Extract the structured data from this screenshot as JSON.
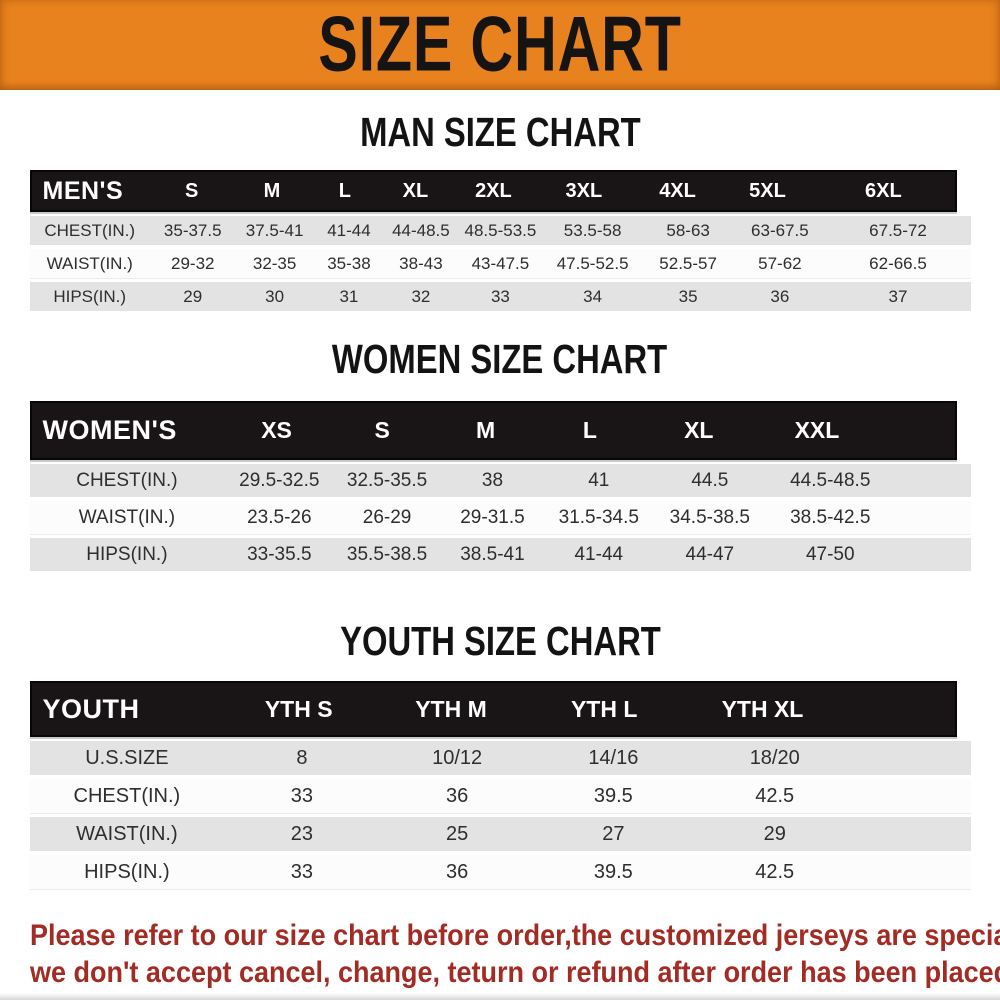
{
  "banner": {
    "title": "SIZE CHART",
    "bg_color": "#E8821E"
  },
  "sections": [
    {
      "heading": "MAN SIZE CHART",
      "header_label": "MEN'S",
      "sizes": [
        "S",
        "M",
        "L",
        "XL",
        "2XL",
        "3XL",
        "4XL",
        "5XL",
        "6XL"
      ],
      "rows": [
        {
          "label": "CHEST(IN.)",
          "values": [
            "35-37.5",
            "37.5-41",
            "41-44",
            "44-48.5",
            "48.5-53.5",
            "53.5-58",
            "58-63",
            "63-67.5",
            "67.5-72"
          ]
        },
        {
          "label": "WAIST(IN.)",
          "values": [
            "29-32",
            "32-35",
            "35-38",
            "38-43",
            "43-47.5",
            "47.5-52.5",
            "52.5-57",
            "57-62",
            "62-66.5"
          ]
        },
        {
          "label": "HIPS(IN.)",
          "values": [
            "29",
            "30",
            "31",
            "32",
            "33",
            "34",
            "35",
            "36",
            "37"
          ]
        }
      ]
    },
    {
      "heading": "WOMEN SIZE CHART",
      "header_label": "WOMEN'S",
      "sizes": [
        "XS",
        "S",
        "M",
        "L",
        "XL",
        "XXL"
      ],
      "rows": [
        {
          "label": "CHEST(IN.)",
          "values": [
            "29.5-32.5",
            "32.5-35.5",
            "38",
            "41",
            "44.5",
            "44.5-48.5"
          ]
        },
        {
          "label": "WAIST(IN.)",
          "values": [
            "23.5-26",
            "26-29",
            "29-31.5",
            "31.5-34.5",
            "34.5-38.5",
            "38.5-42.5"
          ]
        },
        {
          "label": "HIPS(IN.)",
          "values": [
            "33-35.5",
            "35.5-38.5",
            "38.5-41",
            "41-44",
            "44-47",
            "47-50"
          ]
        }
      ]
    },
    {
      "heading": "YOUTH SIZE CHART",
      "header_label": "YOUTH",
      "sizes": [
        "YTH S",
        "YTH M",
        "YTH L",
        "YTH XL"
      ],
      "rows": [
        {
          "label": "U.S.SIZE",
          "values": [
            "8",
            "10/12",
            "14/16",
            "18/20"
          ]
        },
        {
          "label": "CHEST(IN.)",
          "values": [
            "33",
            "36",
            "39.5",
            "42.5"
          ]
        },
        {
          "label": "WAIST(IN.)",
          "values": [
            "23",
            "25",
            "27",
            "29"
          ]
        },
        {
          "label": "HIPS(IN.)",
          "values": [
            "33",
            "36",
            "39.5",
            "42.5"
          ]
        }
      ]
    }
  ],
  "footer": {
    "line1": "Please refer to our size chart before order,the customized jerseys are special products,",
    "line2": "we don't accept cancel, change, teturn or refund after order has been placed!",
    "text_color": "#A22C24"
  }
}
